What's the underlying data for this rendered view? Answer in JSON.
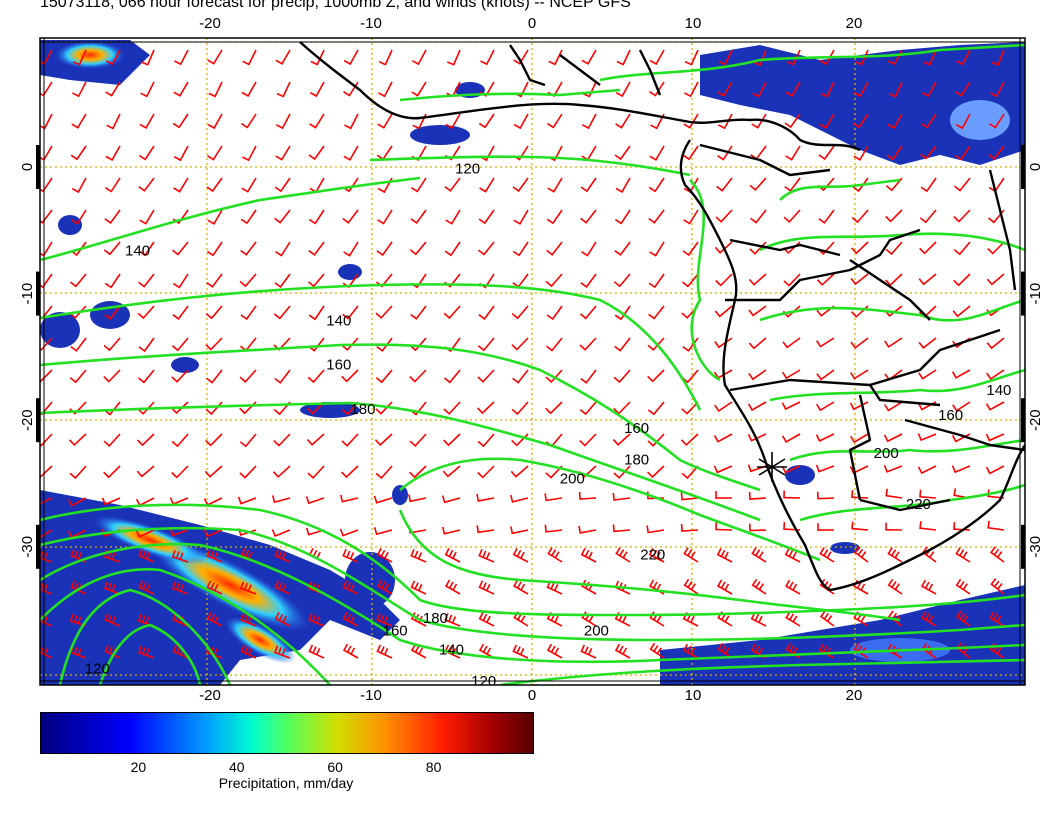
{
  "title": "15073118, 066 hour forecast for precip, 1000mb Z, and winds (knots) -- NCEP GFS",
  "map": {
    "lon_ticks": [
      "-20",
      "-10",
      "0",
      "10",
      "20"
    ],
    "lat_ticks": [
      "0",
      "-10",
      "-20",
      "-30"
    ],
    "lon_range": [
      -30,
      30
    ],
    "lat_range": [
      -40,
      10
    ],
    "contour_labels": [
      {
        "text": "120",
        "lon": -4,
        "lat": -0.5
      },
      {
        "text": "140",
        "lon": -24.5,
        "lat": -7
      },
      {
        "text": "140",
        "lon": -12,
        "lat": -12.5
      },
      {
        "text": "160",
        "lon": -12,
        "lat": -16
      },
      {
        "text": "180",
        "lon": -10.5,
        "lat": -19.5
      },
      {
        "text": "160",
        "lon": 6.5,
        "lat": -21
      },
      {
        "text": "180",
        "lon": 6.5,
        "lat": -23.5
      },
      {
        "text": "200",
        "lon": 2.5,
        "lat": -25
      },
      {
        "text": "220",
        "lon": 7.5,
        "lat": -31
      },
      {
        "text": "200",
        "lon": 4,
        "lat": -37
      },
      {
        "text": "180",
        "lon": -6,
        "lat": -36
      },
      {
        "text": "160",
        "lon": -8.5,
        "lat": -37
      },
      {
        "text": "140",
        "lon": -5,
        "lat": -38.5
      },
      {
        "text": "120",
        "lon": -3,
        "lat": -41
      },
      {
        "text": "120",
        "lon": -27,
        "lat": -40
      },
      {
        "text": "220",
        "lon": 24,
        "lat": -27
      },
      {
        "text": "200",
        "lon": 22,
        "lat": -23
      },
      {
        "text": "140",
        "lon": 29,
        "lat": -18
      },
      {
        "text": "160",
        "lon": 26,
        "lat": -20
      }
    ],
    "marker": {
      "name": "asterisk",
      "lon": 15,
      "lat": -23.5
    }
  },
  "colorbar": {
    "label": "Precipitation, mm/day",
    "ticks": [
      "20",
      "40",
      "60",
      "80"
    ],
    "range": [
      0,
      100
    ]
  },
  "colors": {
    "contour": "#22e022",
    "barb": "#ff0000",
    "grid": "#d4b000",
    "land": "#000000",
    "precip_dark": "#0a1a8f",
    "precip_mid": "#3a6cf0",
    "precip_high": "#ffd000"
  }
}
